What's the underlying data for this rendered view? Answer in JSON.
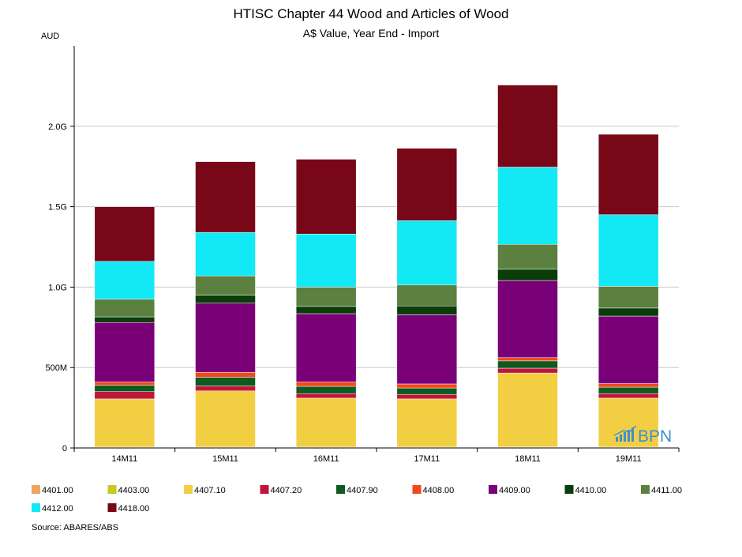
{
  "chart_data": {
    "type": "bar",
    "stacked": true,
    "title": "HTISC Chapter 44 Wood and Articles of Wood",
    "subtitle": "A$ Value, Year End - Import",
    "ylabel": "AUD",
    "ylim": [
      0,
      2500000000
    ],
    "yticks": [
      {
        "value": 0,
        "label": "0"
      },
      {
        "value": 500000000,
        "label": "500M"
      },
      {
        "value": 1000000000,
        "label": "1.0G"
      },
      {
        "value": 1500000000,
        "label": "1.5G"
      },
      {
        "value": 2000000000,
        "label": "2.0G"
      }
    ],
    "grid": true,
    "legend": "bottom",
    "categories": [
      "14M11",
      "15M11",
      "16M11",
      "17M11",
      "18M11",
      "19M11"
    ],
    "series": [
      {
        "name": "4401.00",
        "color": "#f1a25e",
        "values": [
          3000000,
          3000000,
          3000000,
          3000000,
          4000000,
          3000000
        ]
      },
      {
        "name": "4403.00",
        "color": "#c8c81e",
        "values": [
          2000000,
          2000000,
          2000000,
          2000000,
          2000000,
          2000000
        ]
      },
      {
        "name": "4407.10",
        "color": "#f2cf42",
        "values": [
          300000000,
          350000000,
          305000000,
          300000000,
          460000000,
          305000000
        ]
      },
      {
        "name": "4407.20",
        "color": "#c0143c",
        "values": [
          45000000,
          30000000,
          28000000,
          28000000,
          30000000,
          28000000
        ]
      },
      {
        "name": "4407.90",
        "color": "#0f5a1e",
        "values": [
          40000000,
          55000000,
          45000000,
          40000000,
          45000000,
          40000000
        ]
      },
      {
        "name": "4408.00",
        "color": "#f2481b",
        "values": [
          20000000,
          30000000,
          27000000,
          25000000,
          20000000,
          22000000
        ]
      },
      {
        "name": "4409.00",
        "color": "#7a0077",
        "values": [
          370000000,
          430000000,
          425000000,
          430000000,
          480000000,
          420000000
        ]
      },
      {
        "name": "4410.00",
        "color": "#0b3d0b",
        "values": [
          35000000,
          50000000,
          45000000,
          55000000,
          70000000,
          50000000
        ]
      },
      {
        "name": "4411.00",
        "color": "#5b8040",
        "values": [
          110000000,
          120000000,
          120000000,
          130000000,
          155000000,
          135000000
        ]
      },
      {
        "name": "4412.00",
        "color": "#13e9f5",
        "values": [
          235000000,
          270000000,
          330000000,
          400000000,
          480000000,
          445000000
        ]
      },
      {
        "name": "4418.00",
        "color": "#780718",
        "values": [
          340000000,
          440000000,
          465000000,
          450000000,
          510000000,
          500000000
        ]
      }
    ]
  },
  "source": "Source: ABARES/ABS",
  "logo": {
    "text": "BPN",
    "icon": "bpn-bar-chart-icon",
    "color": "#3d8fd0"
  }
}
